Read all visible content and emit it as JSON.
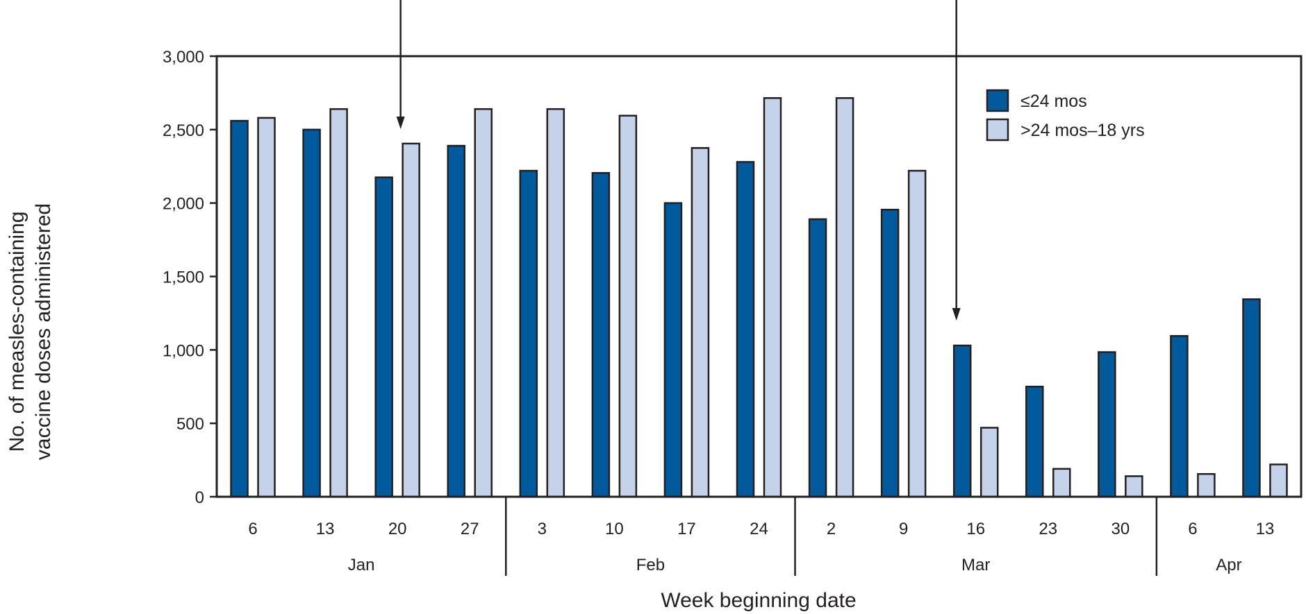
{
  "chart_data": {
    "type": "bar",
    "x": [
      "6",
      "13",
      "20",
      "27",
      "3",
      "10",
      "17",
      "24",
      "2",
      "9",
      "16",
      "23",
      "30",
      "6",
      "13"
    ],
    "month_groups": [
      {
        "label": "Jan",
        "count": 4
      },
      {
        "label": "Feb",
        "count": 4
      },
      {
        "label": "Mar",
        "count": 5
      },
      {
        "label": "Apr",
        "count": 2
      }
    ],
    "series": [
      {
        "name": "≤24 mos",
        "color": "#005a9c",
        "values": [
          2560,
          2500,
          2175,
          2390,
          2220,
          2205,
          2000,
          2280,
          1890,
          1955,
          1030,
          750,
          985,
          1095,
          1345
        ]
      },
      {
        "name": ">24 mos–18 yrs",
        "color": "#c5d3ea",
        "values": [
          2580,
          2640,
          2405,
          2640,
          2640,
          2595,
          2375,
          2715,
          2715,
          2220,
          470,
          190,
          140,
          155,
          220
        ]
      }
    ],
    "ylim": [
      0,
      3000
    ],
    "yticks": [
      0,
      500,
      1000,
      1500,
      2000,
      2500,
      3000
    ],
    "ytick_labels": [
      "0",
      "500",
      "1,000",
      "1,500",
      "2,000",
      "2,500",
      "3,000"
    ],
    "ylabel_lines": [
      "No. of measles-containing",
      "vaccine doses administered"
    ],
    "xlabel": "Week beginning date",
    "legend_position": "top-right",
    "annotations": [
      {
        "type": "arrow",
        "target_week_index": 2
      },
      {
        "type": "arrow",
        "target_week_index": 10
      }
    ]
  }
}
